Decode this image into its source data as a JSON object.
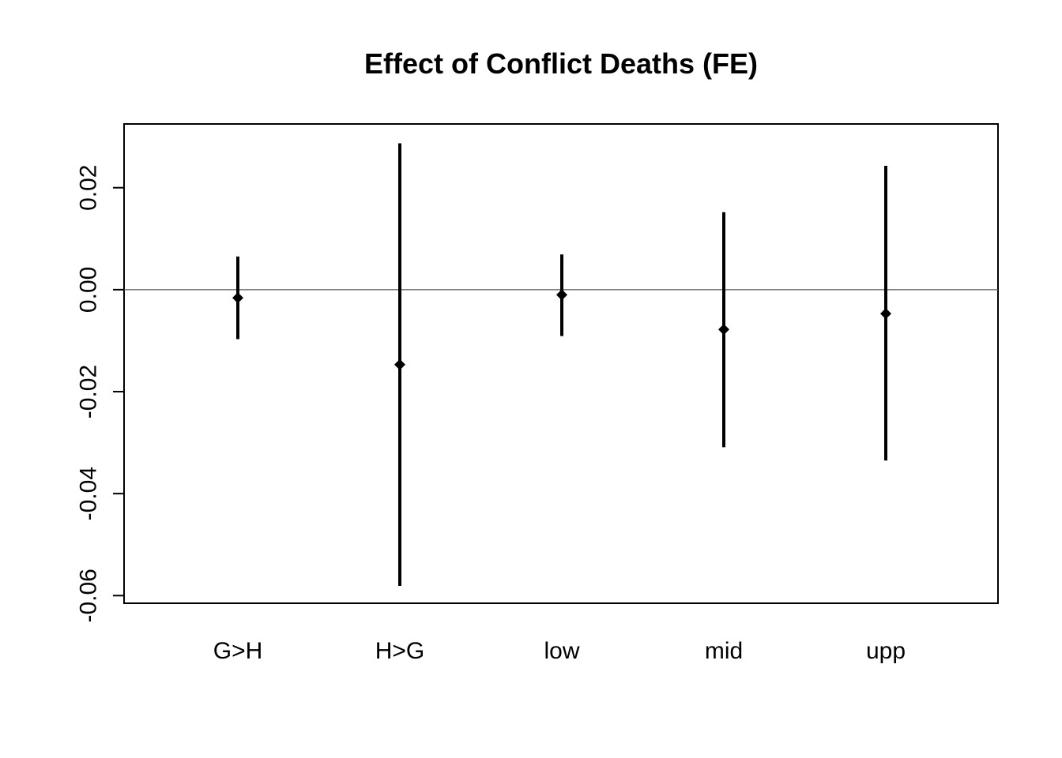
{
  "chart_data": {
    "type": "errorbar",
    "title": "Effect of Conflict Deaths (FE)",
    "xlabel": "",
    "ylabel": "",
    "categories": [
      "G>H",
      "H>G",
      "low",
      "mid",
      "upp"
    ],
    "estimates": [
      -0.0016,
      -0.0147,
      -0.001,
      -0.0078,
      -0.0047
    ],
    "lower": [
      -0.0097,
      -0.0581,
      -0.0091,
      -0.0309,
      -0.0335
    ],
    "upper": [
      0.0065,
      0.0287,
      0.0069,
      0.0152,
      0.0243
    ],
    "ylim": [
      -0.0615,
      0.0325
    ],
    "yticks": [
      -0.06,
      -0.04,
      -0.02,
      0.0,
      0.02
    ],
    "ytick_labels": [
      "-0.06",
      "-0.04",
      "-0.02",
      "0.00",
      "0.02"
    ],
    "reference_line": 0,
    "grid": false,
    "colors": {
      "marks": "#000000",
      "reference_line": "#555555",
      "frame": "#000000"
    }
  }
}
